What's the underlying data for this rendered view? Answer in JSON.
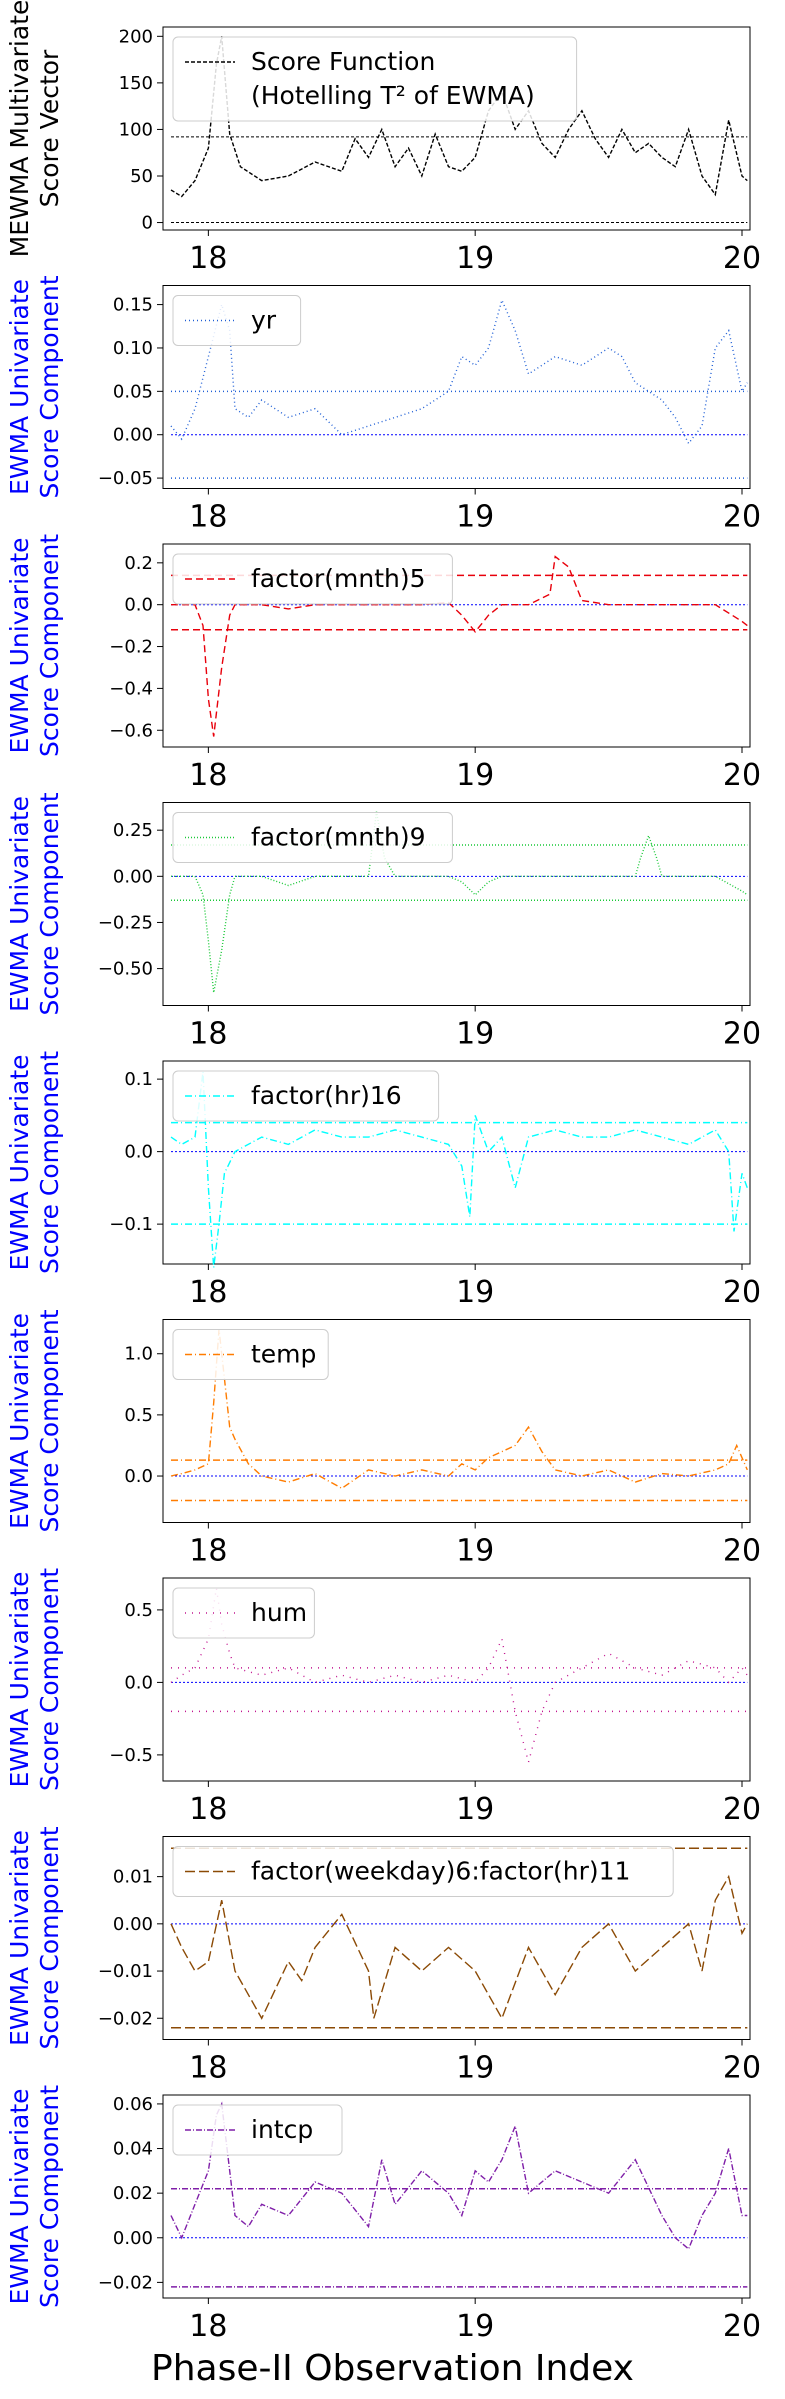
{
  "figure": {
    "xlabel": "Phase-II Observation Index",
    "x_ticks": [
      "18",
      "19",
      "20"
    ]
  },
  "chart_data": [
    {
      "type": "line",
      "ylabel": [
        "MEWMA Multivariate",
        "Score Vector"
      ],
      "ylabel_color": "#000000",
      "color": "#000000",
      "dash": "4,2",
      "legend": [
        "Score Function",
        "(Hotelling T² of EWMA)"
      ],
      "legend_position": "top-left",
      "ylim": [
        -8,
        210
      ],
      "yticks": [
        0,
        50,
        100,
        150,
        200
      ],
      "ytick_labels": [
        "0",
        "50",
        "100",
        "150",
        "200"
      ],
      "xlim": [
        17.83,
        20.03
      ],
      "thresholds": [
        {
          "y": 0,
          "style": "black"
        },
        {
          "y": 92,
          "style": "black"
        }
      ],
      "series": [
        {
          "x": [
            17.86,
            17.9,
            17.95,
            18.0,
            18.03,
            18.05,
            18.08,
            18.12,
            18.2,
            18.3,
            18.4,
            18.5,
            18.55,
            18.6,
            18.65,
            18.7,
            18.75,
            18.8,
            18.85,
            18.9,
            18.95,
            19.0,
            19.05,
            19.1,
            19.15,
            19.2,
            19.25,
            19.3,
            19.35,
            19.4,
            19.45,
            19.5,
            19.55,
            19.6,
            19.65,
            19.7,
            19.75,
            19.8,
            19.85,
            19.9,
            19.95,
            20.0,
            20.02
          ],
          "values": [
            35,
            28,
            45,
            80,
            170,
            200,
            95,
            60,
            45,
            50,
            65,
            55,
            90,
            70,
            100,
            60,
            80,
            50,
            95,
            60,
            55,
            70,
            120,
            140,
            100,
            120,
            85,
            70,
            100,
            120,
            90,
            70,
            100,
            75,
            85,
            70,
            60,
            100,
            50,
            30,
            110,
            50,
            45
          ]
        }
      ]
    },
    {
      "type": "line",
      "ylabel": [
        "EWMA Univariate",
        "Score Component"
      ],
      "ylabel_color": "#0000ff",
      "color": "#1f5fd6",
      "dash": "1,3",
      "legend": [
        "yr"
      ],
      "legend_position": "top-left",
      "ylim": [
        -0.062,
        0.172
      ],
      "yticks": [
        -0.05,
        0.0,
        0.05,
        0.1,
        0.15
      ],
      "ytick_labels": [
        "−0.05",
        "0.00",
        "0.05",
        "0.10",
        "0.15"
      ],
      "xlim": [
        17.83,
        20.03
      ],
      "thresholds": [
        {
          "y": 0.0,
          "style": "center"
        },
        {
          "y": 0.05,
          "style": "limit"
        },
        {
          "y": -0.05,
          "style": "limit"
        }
      ],
      "series": [
        {
          "x": [
            17.86,
            17.9,
            17.95,
            18.0,
            18.05,
            18.08,
            18.1,
            18.15,
            18.2,
            18.3,
            18.4,
            18.5,
            18.6,
            18.7,
            18.8,
            18.9,
            18.95,
            19.0,
            19.05,
            19.1,
            19.15,
            19.2,
            19.3,
            19.4,
            19.5,
            19.55,
            19.6,
            19.7,
            19.75,
            19.8,
            19.85,
            19.9,
            19.95,
            20.0,
            20.02
          ],
          "values": [
            0.01,
            -0.005,
            0.03,
            0.09,
            0.15,
            0.12,
            0.03,
            0.02,
            0.04,
            0.02,
            0.03,
            0.0,
            0.01,
            0.02,
            0.03,
            0.05,
            0.09,
            0.08,
            0.1,
            0.155,
            0.12,
            0.07,
            0.09,
            0.08,
            0.1,
            0.09,
            0.06,
            0.04,
            0.02,
            -0.01,
            0.01,
            0.1,
            0.12,
            0.05,
            0.06
          ]
        }
      ]
    },
    {
      "type": "line",
      "ylabel": [
        "EWMA Univariate",
        "Score Component"
      ],
      "ylabel_color": "#0000ff",
      "color": "#e8000b",
      "dash": "7,4",
      "legend": [
        "factor(mnth)5"
      ],
      "legend_position": "top-left",
      "ylim": [
        -0.68,
        0.29
      ],
      "yticks": [
        -0.6,
        -0.4,
        -0.2,
        0.0,
        0.2
      ],
      "ytick_labels": [
        "−0.6",
        "−0.4",
        "−0.2",
        "0.0",
        "0.2"
      ],
      "xlim": [
        17.83,
        20.03
      ],
      "thresholds": [
        {
          "y": 0.0,
          "style": "center"
        },
        {
          "y": 0.14,
          "style": "limit"
        },
        {
          "y": -0.12,
          "style": "limit"
        }
      ],
      "series": [
        {
          "x": [
            17.86,
            17.9,
            17.95,
            17.98,
            18.0,
            18.02,
            18.05,
            18.08,
            18.1,
            18.2,
            18.3,
            18.4,
            18.5,
            18.6,
            18.7,
            18.8,
            18.9,
            18.95,
            19.0,
            19.05,
            19.1,
            19.2,
            19.28,
            19.3,
            19.35,
            19.4,
            19.5,
            19.6,
            19.7,
            19.8,
            19.9,
            20.0,
            20.02
          ],
          "values": [
            0.0,
            0.0,
            0.0,
            -0.1,
            -0.45,
            -0.63,
            -0.3,
            -0.05,
            0.0,
            0.0,
            -0.02,
            0.0,
            0.0,
            0.0,
            0.0,
            0.0,
            0.01,
            -0.05,
            -0.13,
            -0.05,
            0.0,
            0.0,
            0.05,
            0.23,
            0.18,
            0.02,
            0.0,
            0.0,
            0.0,
            0.0,
            0.0,
            -0.08,
            -0.1
          ]
        }
      ]
    },
    {
      "type": "line",
      "ylabel": [
        "EWMA Univariate",
        "Score Component"
      ],
      "ylabel_color": "#0000ff",
      "color": "#1ac938",
      "dash": "1,2",
      "legend": [
        "factor(mnth)9"
      ],
      "legend_position": "top-left",
      "ylim": [
        -0.7,
        0.4
      ],
      "yticks": [
        -0.5,
        -0.25,
        0.0,
        0.25
      ],
      "ytick_labels": [
        "−0.50",
        "−0.25",
        "0.00",
        "0.25"
      ],
      "xlim": [
        17.83,
        20.03
      ],
      "thresholds": [
        {
          "y": 0.0,
          "style": "center"
        },
        {
          "y": 0.17,
          "style": "limit"
        },
        {
          "y": -0.13,
          "style": "limit"
        }
      ],
      "series": [
        {
          "x": [
            17.86,
            17.9,
            17.95,
            17.98,
            18.0,
            18.02,
            18.05,
            18.08,
            18.1,
            18.2,
            18.3,
            18.4,
            18.5,
            18.6,
            18.63,
            18.66,
            18.7,
            18.8,
            18.9,
            18.95,
            19.0,
            19.05,
            19.1,
            19.2,
            19.3,
            19.4,
            19.5,
            19.6,
            19.62,
            19.65,
            19.68,
            19.7,
            19.8,
            19.9,
            20.0,
            20.02
          ],
          "values": [
            0.0,
            0.0,
            0.0,
            -0.1,
            -0.35,
            -0.63,
            -0.4,
            -0.1,
            0.0,
            0.0,
            -0.05,
            0.0,
            0.0,
            0.0,
            0.35,
            0.1,
            0.0,
            0.0,
            0.0,
            -0.03,
            -0.1,
            -0.03,
            0.0,
            0.0,
            0.0,
            0.0,
            0.0,
            0.0,
            0.1,
            0.22,
            0.1,
            0.0,
            0.0,
            0.0,
            -0.08,
            -0.1
          ]
        }
      ]
    },
    {
      "type": "line",
      "ylabel": [
        "EWMA Univariate",
        "Score Component"
      ],
      "ylabel_color": "#0000ff",
      "color": "#00ffff",
      "dash": "7,3,1,3",
      "legend": [
        "factor(hr)16"
      ],
      "legend_position": "top-left",
      "ylim": [
        -0.155,
        0.125
      ],
      "yticks": [
        -0.1,
        0.0,
        0.1
      ],
      "ytick_labels": [
        "−0.1",
        "0.0",
        "0.1"
      ],
      "xlim": [
        17.83,
        20.03
      ],
      "thresholds": [
        {
          "y": 0.0,
          "style": "center"
        },
        {
          "y": 0.04,
          "style": "limit"
        },
        {
          "y": -0.1,
          "style": "limit"
        }
      ],
      "series": [
        {
          "x": [
            17.86,
            17.9,
            17.95,
            17.98,
            18.0,
            18.02,
            18.04,
            18.06,
            18.1,
            18.2,
            18.3,
            18.4,
            18.5,
            18.6,
            18.7,
            18.8,
            18.9,
            18.95,
            18.98,
            19.0,
            19.05,
            19.1,
            19.15,
            19.2,
            19.3,
            19.4,
            19.5,
            19.6,
            19.7,
            19.8,
            19.9,
            19.95,
            19.97,
            20.0,
            20.02
          ],
          "values": [
            0.02,
            0.01,
            0.02,
            0.11,
            -0.05,
            -0.16,
            -0.1,
            -0.03,
            0.0,
            0.02,
            0.01,
            0.03,
            0.02,
            0.02,
            0.03,
            0.02,
            0.01,
            -0.02,
            -0.09,
            0.05,
            0.0,
            0.02,
            -0.05,
            0.02,
            0.03,
            0.02,
            0.02,
            0.03,
            0.02,
            0.01,
            0.03,
            0.0,
            -0.11,
            -0.03,
            -0.05
          ]
        }
      ]
    },
    {
      "type": "line",
      "ylabel": [
        "EWMA Univariate",
        "Score Component"
      ],
      "ylabel_color": "#0000ff",
      "color": "#ff7c00",
      "dash": "7,3,1,3",
      "legend": [
        "temp"
      ],
      "legend_position": "top-left",
      "ylim": [
        -0.38,
        1.28
      ],
      "yticks": [
        0.0,
        0.5,
        1.0
      ],
      "ytick_labels": [
        "0.0",
        "0.5",
        "1.0"
      ],
      "xlim": [
        17.83,
        20.03
      ],
      "thresholds": [
        {
          "y": 0.0,
          "style": "center"
        },
        {
          "y": 0.13,
          "style": "limit"
        },
        {
          "y": -0.2,
          "style": "limit"
        }
      ],
      "series": [
        {
          "x": [
            17.86,
            17.9,
            17.95,
            18.0,
            18.02,
            18.04,
            18.06,
            18.08,
            18.1,
            18.15,
            18.2,
            18.3,
            18.4,
            18.5,
            18.6,
            18.7,
            18.8,
            18.9,
            18.95,
            19.0,
            19.05,
            19.1,
            19.15,
            19.2,
            19.25,
            19.3,
            19.4,
            19.5,
            19.6,
            19.7,
            19.8,
            19.9,
            19.95,
            19.98,
            20.0,
            20.02
          ],
          "values": [
            0.0,
            0.02,
            0.05,
            0.1,
            0.6,
            1.2,
            0.8,
            0.4,
            0.3,
            0.1,
            0.0,
            -0.05,
            0.02,
            -0.1,
            0.05,
            0.0,
            0.05,
            0.0,
            0.1,
            0.05,
            0.15,
            0.2,
            0.25,
            0.4,
            0.2,
            0.05,
            0.0,
            0.05,
            -0.05,
            0.02,
            0.0,
            0.05,
            0.1,
            0.25,
            0.15,
            0.05
          ]
        }
      ]
    },
    {
      "type": "line",
      "ylabel": [
        "EWMA Univariate",
        "Score Component"
      ],
      "ylabel_color": "#0000ff",
      "color": "#c2138f",
      "dash": "1,6",
      "legend": [
        "hum"
      ],
      "legend_position": "top-left",
      "ylim": [
        -0.68,
        0.72
      ],
      "yticks": [
        -0.5,
        0.0,
        0.5
      ],
      "ytick_labels": [
        "−0.5",
        "0.0",
        "0.5"
      ],
      "xlim": [
        17.83,
        20.03
      ],
      "thresholds": [
        {
          "y": 0.0,
          "style": "center"
        },
        {
          "y": 0.1,
          "style": "limit"
        },
        {
          "y": -0.2,
          "style": "limit"
        }
      ],
      "series": [
        {
          "x": [
            17.86,
            17.9,
            17.95,
            18.0,
            18.03,
            18.05,
            18.08,
            18.1,
            18.2,
            18.3,
            18.4,
            18.5,
            18.6,
            18.7,
            18.8,
            18.9,
            19.0,
            19.05,
            19.1,
            19.15,
            19.2,
            19.25,
            19.3,
            19.4,
            19.5,
            19.6,
            19.7,
            19.8,
            19.9,
            19.95,
            20.0,
            20.02
          ],
          "values": [
            0.0,
            0.05,
            0.1,
            0.3,
            0.65,
            0.4,
            0.2,
            0.1,
            0.05,
            0.1,
            0.0,
            0.05,
            0.0,
            0.05,
            0.0,
            0.05,
            0.0,
            0.1,
            0.3,
            -0.2,
            -0.55,
            -0.2,
            0.0,
            0.1,
            0.2,
            0.1,
            0.05,
            0.15,
            0.1,
            0.0,
            0.1,
            0.05
          ]
        }
      ]
    },
    {
      "type": "line",
      "ylabel": [
        "EWMA Univariate",
        "Score Component"
      ],
      "ylabel_color": "#0000ff",
      "color": "#8b4a05",
      "dash": "10,4",
      "legend": [
        "factor(weekday)6:factor(hr)11"
      ],
      "legend_position": "top-left",
      "ylim": [
        -0.0245,
        0.0185
      ],
      "yticks": [
        -0.02,
        -0.01,
        0.0,
        0.01
      ],
      "ytick_labels": [
        "−0.02",
        "−0.01",
        "0.00",
        "0.01"
      ],
      "xlim": [
        17.83,
        20.03
      ],
      "thresholds": [
        {
          "y": 0.0,
          "style": "center"
        },
        {
          "y": 0.016,
          "style": "limit"
        },
        {
          "y": -0.022,
          "style": "limit"
        }
      ],
      "series": [
        {
          "x": [
            17.86,
            17.9,
            17.95,
            18.0,
            18.05,
            18.1,
            18.2,
            18.3,
            18.35,
            18.4,
            18.5,
            18.6,
            18.62,
            18.7,
            18.8,
            18.9,
            19.0,
            19.05,
            19.1,
            19.2,
            19.3,
            19.4,
            19.5,
            19.6,
            19.7,
            19.8,
            19.85,
            19.9,
            19.95,
            20.0,
            20.02
          ],
          "values": [
            0.0,
            -0.005,
            -0.01,
            -0.008,
            0.005,
            -0.01,
            -0.02,
            -0.008,
            -0.012,
            -0.005,
            0.002,
            -0.01,
            -0.02,
            -0.005,
            -0.01,
            -0.005,
            -0.01,
            -0.015,
            -0.02,
            -0.005,
            -0.015,
            -0.005,
            0.0,
            -0.01,
            -0.005,
            0.0,
            -0.01,
            0.005,
            0.01,
            -0.002,
            0.0
          ]
        }
      ]
    },
    {
      "type": "line",
      "ylabel": [
        "EWMA Univariate",
        "Score Component"
      ],
      "ylabel_color": "#0000ff",
      "color": "#7f1fa8",
      "dash": "6,2,1,2",
      "legend": [
        "intcp"
      ],
      "legend_position": "top-left",
      "ylim": [
        -0.027,
        0.064
      ],
      "yticks": [
        -0.02,
        0.0,
        0.02,
        0.04,
        0.06
      ],
      "ytick_labels": [
        "−0.02",
        "0.00",
        "0.02",
        "0.04",
        "0.06"
      ],
      "xlim": [
        17.83,
        20.03
      ],
      "thresholds": [
        {
          "y": 0.0,
          "style": "center"
        },
        {
          "y": 0.022,
          "style": "limit"
        },
        {
          "y": -0.022,
          "style": "limit"
        }
      ],
      "series": [
        {
          "x": [
            17.86,
            17.9,
            17.95,
            18.0,
            18.03,
            18.05,
            18.08,
            18.1,
            18.15,
            18.2,
            18.3,
            18.4,
            18.5,
            18.6,
            18.65,
            18.7,
            18.8,
            18.9,
            18.95,
            19.0,
            19.05,
            19.1,
            19.15,
            19.2,
            19.3,
            19.4,
            19.5,
            19.6,
            19.7,
            19.75,
            19.8,
            19.85,
            19.9,
            19.95,
            20.0,
            20.02
          ],
          "values": [
            0.01,
            0.0,
            0.015,
            0.03,
            0.055,
            0.06,
            0.03,
            0.01,
            0.005,
            0.015,
            0.01,
            0.025,
            0.02,
            0.005,
            0.035,
            0.015,
            0.03,
            0.02,
            0.01,
            0.03,
            0.025,
            0.035,
            0.05,
            0.02,
            0.03,
            0.025,
            0.02,
            0.035,
            0.01,
            0.0,
            -0.005,
            0.01,
            0.02,
            0.04,
            0.01,
            0.01
          ]
        }
      ]
    }
  ]
}
